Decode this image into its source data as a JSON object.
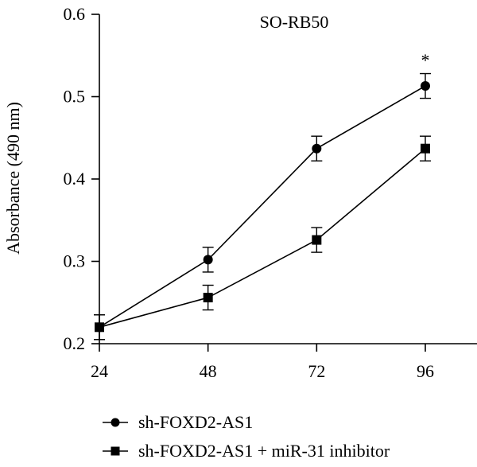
{
  "chart_data": {
    "type": "line",
    "title": "SO-RB50",
    "xlabel": "",
    "ylabel": "Absorbance (490 nm)",
    "x": [
      24,
      48,
      72,
      96
    ],
    "xlim": [
      24,
      96
    ],
    "ylim": [
      0.2,
      0.6
    ],
    "yticks": [
      "0.2",
      "0.3",
      "0.4",
      "0.5",
      "0.6"
    ],
    "xticks": [
      "24",
      "48",
      "72",
      "96"
    ],
    "grid": false,
    "legend_position": "bottom",
    "series": [
      {
        "name": "sh-FOXD2-AS1",
        "marker": "circle",
        "color": "#000000",
        "values": [
          0.22,
          0.302,
          0.437,
          0.513
        ],
        "error": [
          0.015,
          0.015,
          0.015,
          0.015
        ]
      },
      {
        "name": "sh-FOXD2-AS1 + miR-31 inhibitor",
        "marker": "square",
        "color": "#000000",
        "values": [
          0.22,
          0.256,
          0.326,
          0.437
        ],
        "error": [
          0.015,
          0.015,
          0.015,
          0.015
        ]
      }
    ],
    "annotations": [
      {
        "text": "*",
        "x": 96,
        "y": 0.545
      }
    ]
  }
}
